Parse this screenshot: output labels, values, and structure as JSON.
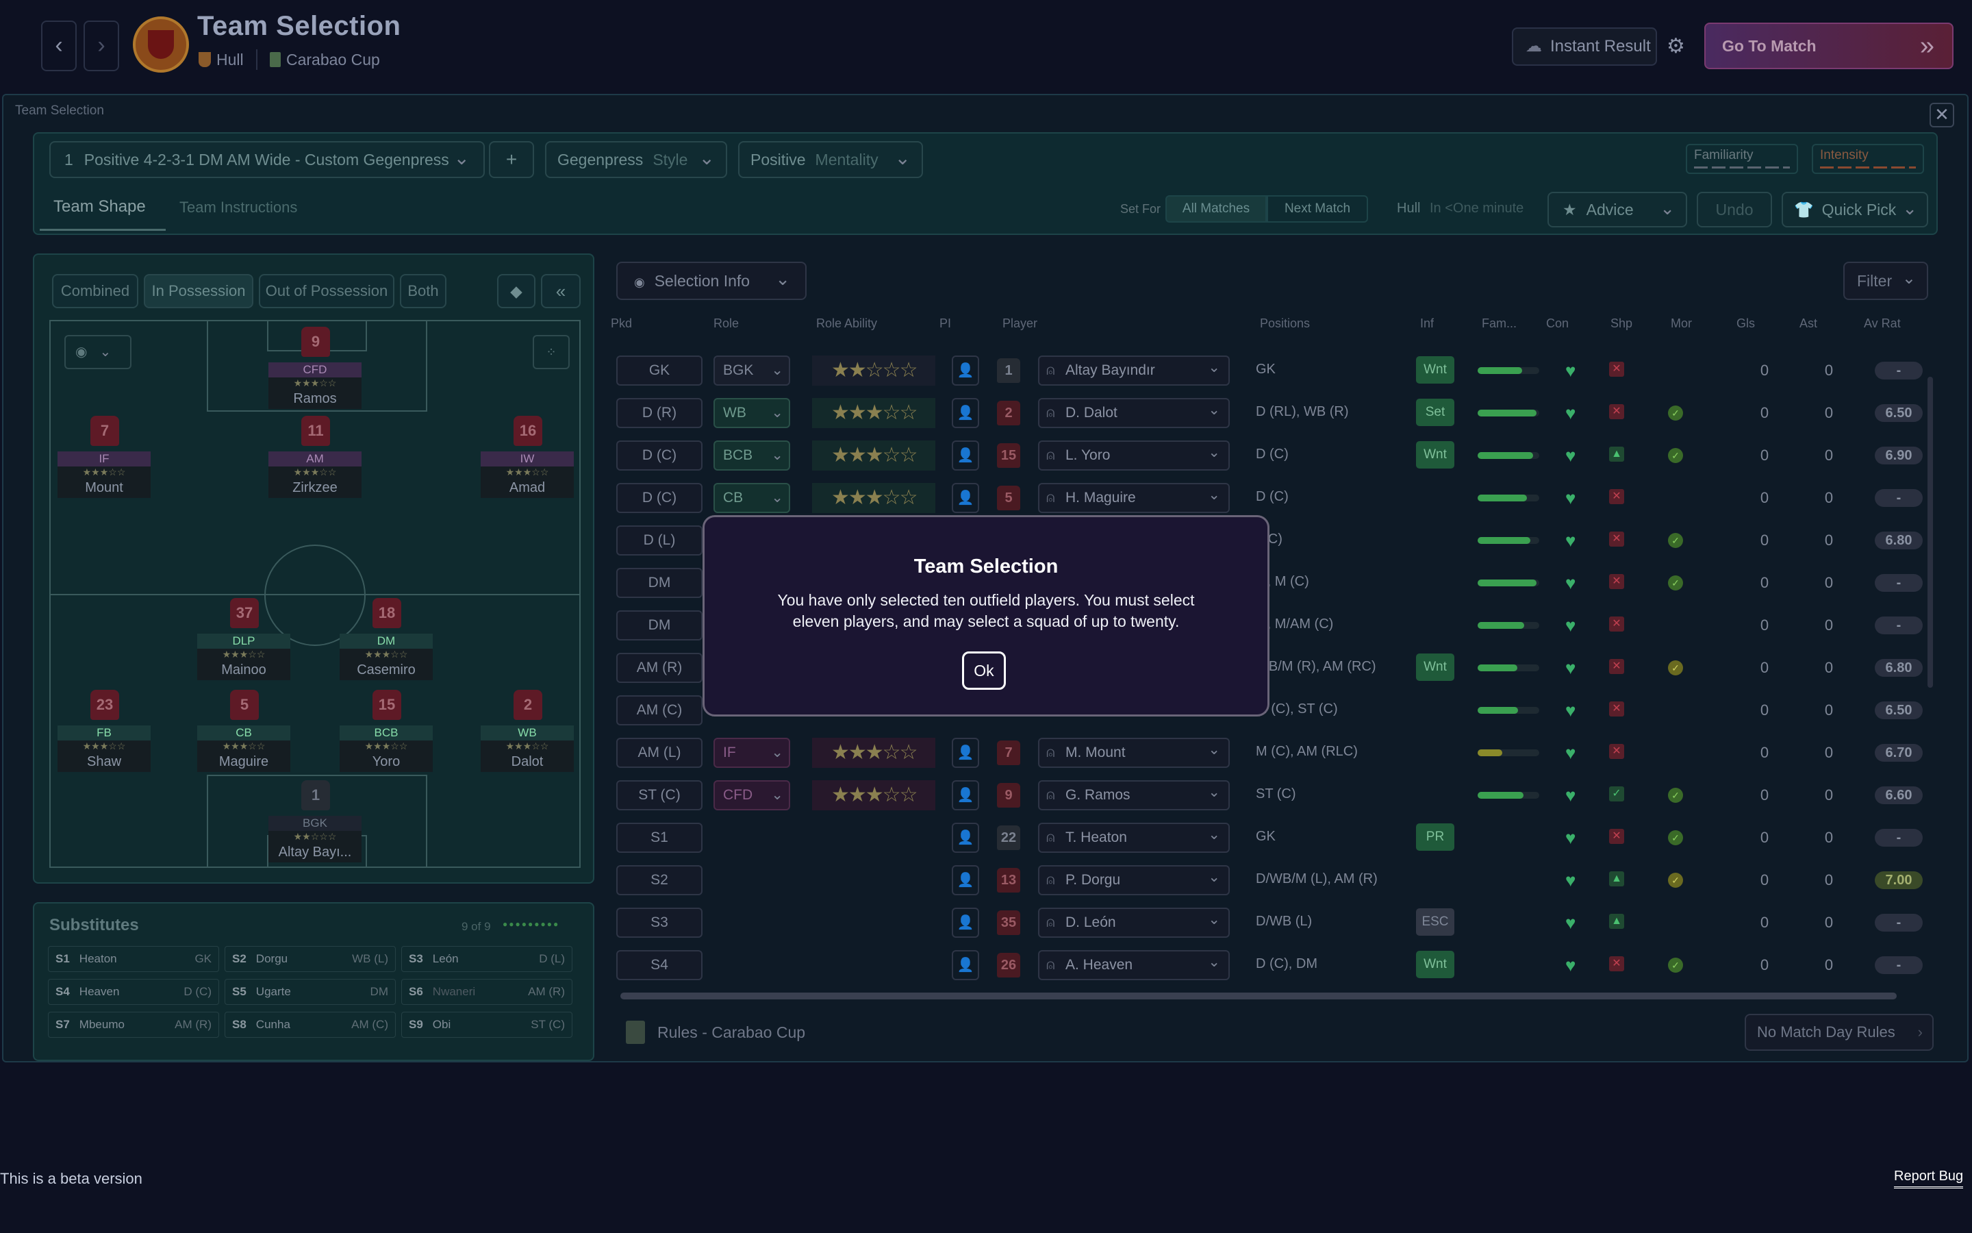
{
  "header": {
    "title": "Team Selection",
    "opponent": "Hull",
    "competition": "Carabao Cup",
    "instant_result": "Instant Result",
    "go_to_match": "Go To Match"
  },
  "panel": {
    "title": "Team Selection",
    "tactic_number": "1",
    "tactic_name": "Positive 4-2-3-1 DM AM Wide - Custom Gegenpress",
    "add": "+",
    "style_value": "Gegenpress",
    "style_label": "Style",
    "mentality_value": "Positive",
    "mentality_label": "Mentality",
    "familiarity": "Familiarity",
    "intensity": "Intensity",
    "tabs": [
      "Team Shape",
      "Team Instructions"
    ],
    "set_for": "Set For",
    "set_for_options": [
      "All Matches",
      "Next Match"
    ],
    "next_opp": "Hull",
    "next_time": "In <One minute",
    "advice": "Advice",
    "undo": "Undo",
    "quick_pick": "Quick Pick"
  },
  "pitch": {
    "views": [
      "Combined",
      "In Possession",
      "Out of Possession",
      "Both"
    ],
    "players": [
      {
        "num": "9",
        "role": "CFD",
        "stars": "★★★☆☆",
        "name": "Ramos"
      },
      {
        "num": "7",
        "role": "IF",
        "stars": "★★★☆☆",
        "name": "Mount"
      },
      {
        "num": "11",
        "role": "AM",
        "stars": "★★★☆☆",
        "name": "Zirkzee"
      },
      {
        "num": "16",
        "role": "IW",
        "stars": "★★★☆☆",
        "name": "Amad"
      },
      {
        "num": "37",
        "role": "DLP",
        "stars": "★★★☆☆",
        "name": "Mainoo"
      },
      {
        "num": "18",
        "role": "DM",
        "stars": "★★★☆☆",
        "name": "Casemiro"
      },
      {
        "num": "23",
        "role": "FB",
        "stars": "★★★☆☆",
        "name": "Shaw"
      },
      {
        "num": "5",
        "role": "CB",
        "stars": "★★★☆☆",
        "name": "Maguire"
      },
      {
        "num": "15",
        "role": "BCB",
        "stars": "★★★☆☆",
        "name": "Yoro"
      },
      {
        "num": "2",
        "role": "WB",
        "stars": "★★★☆☆",
        "name": "Dalot"
      },
      {
        "num": "1",
        "role": "BGK",
        "stars": "★★☆☆☆",
        "name": "Altay Bayı..."
      }
    ]
  },
  "substitutes": {
    "title": "Substitutes",
    "count": "9 of 9",
    "dots": "●●●●●●●●●",
    "list": [
      {
        "slot": "S1",
        "name": "Heaton",
        "pos": "GK"
      },
      {
        "slot": "S2",
        "name": "Dorgu",
        "pos": "WB (L)"
      },
      {
        "slot": "S3",
        "name": "León",
        "pos": "D (L)"
      },
      {
        "slot": "S4",
        "name": "Heaven",
        "pos": "D (C)"
      },
      {
        "slot": "S5",
        "name": "Ugarte",
        "pos": "DM"
      },
      {
        "slot": "S6",
        "name": "Nwaneri",
        "pos": "AM (R)"
      },
      {
        "slot": "S7",
        "name": "Mbeumo",
        "pos": "AM (R)"
      },
      {
        "slot": "S8",
        "name": "Cunha",
        "pos": "AM (C)"
      },
      {
        "slot": "S9",
        "name": "Obi",
        "pos": "ST (C)"
      }
    ]
  },
  "table": {
    "selection_info": "Selection Info",
    "filter": "Filter",
    "headers": [
      "Pkd",
      "Role",
      "Role Ability",
      "PI",
      "Player",
      "Positions",
      "Inf",
      "Fam...",
      "Con",
      "Shp",
      "Mor",
      "Gls",
      "Ast",
      "Av Rat"
    ],
    "rows": [
      {
        "pkd": "GK",
        "role": "BGK",
        "stars": "★★☆☆☆",
        "num": "1",
        "player": "Altay Bayındır",
        "pos": "GK",
        "inf": "Wnt",
        "gls": "0",
        "ast": "0",
        "avr": "-"
      },
      {
        "pkd": "D (R)",
        "role": "WB",
        "stars": "★★★☆☆",
        "num": "2",
        "player": "D. Dalot",
        "pos": "D (RL), WB (R)",
        "inf": "Set",
        "gls": "0",
        "ast": "0",
        "avr": "6.50"
      },
      {
        "pkd": "D (C)",
        "role": "BCB",
        "stars": "★★★☆☆",
        "num": "15",
        "player": "L. Yoro",
        "pos": "D (C)",
        "inf": "Wnt",
        "gls": "0",
        "ast": "0",
        "avr": "6.90"
      },
      {
        "pkd": "D (C)",
        "role": "CB",
        "stars": "★★★☆☆",
        "num": "5",
        "player": "H. Maguire",
        "pos": "D (C)",
        "inf": "",
        "gls": "0",
        "ast": "0",
        "avr": "-"
      },
      {
        "pkd": "D (L)",
        "role": "",
        "stars": "",
        "num": "",
        "player": "",
        "pos": "(LC)",
        "inf": "",
        "gls": "0",
        "ast": "0",
        "avr": "6.80"
      },
      {
        "pkd": "DM",
        "role": "",
        "stars": "",
        "num": "",
        "player": "",
        "pos": "M, M (C)",
        "inf": "",
        "gls": "0",
        "ast": "0",
        "avr": "-"
      },
      {
        "pkd": "DM",
        "role": "",
        "stars": "",
        "num": "",
        "player": "",
        "pos": "M, M/AM (C)",
        "inf": "",
        "gls": "0",
        "ast": "0",
        "avr": "-"
      },
      {
        "pkd": "AM (R)",
        "role": "",
        "stars": "",
        "num": "",
        "player": "",
        "pos": "WB/M (R), AM (RC)",
        "inf": "Wnt",
        "gls": "0",
        "ast": "0",
        "avr": "6.80"
      },
      {
        "pkd": "AM (C)",
        "role": "",
        "stars": "",
        "num": "",
        "player": "",
        "pos": "M (C), ST (C)",
        "inf": "",
        "gls": "0",
        "ast": "0",
        "avr": "6.50"
      },
      {
        "pkd": "AM (L)",
        "role": "IF",
        "stars": "★★★☆☆",
        "num": "7",
        "player": "M. Mount",
        "pos": "M (C), AM (RLC)",
        "inf": "",
        "gls": "0",
        "ast": "0",
        "avr": "6.70"
      },
      {
        "pkd": "ST (C)",
        "role": "CFD",
        "stars": "★★★☆☆",
        "num": "9",
        "player": "G. Ramos",
        "pos": "ST (C)",
        "inf": "",
        "gls": "0",
        "ast": "0",
        "avr": "6.60"
      },
      {
        "pkd": "S1",
        "role": "",
        "stars": "",
        "num": "22",
        "player": "T. Heaton",
        "pos": "GK",
        "inf": "PR",
        "gls": "0",
        "ast": "0",
        "avr": "-"
      },
      {
        "pkd": "S2",
        "role": "",
        "stars": "",
        "num": "13",
        "player": "P. Dorgu",
        "pos": "D/WB/M (L), AM (R)",
        "inf": "",
        "gls": "0",
        "ast": "0",
        "avr": "7.00"
      },
      {
        "pkd": "S3",
        "role": "",
        "stars": "",
        "num": "35",
        "player": "D. León",
        "pos": "D/WB (L)",
        "inf": "ESC",
        "gls": "0",
        "ast": "0",
        "avr": "-"
      },
      {
        "pkd": "S4",
        "role": "",
        "stars": "",
        "num": "26",
        "player": "A. Heaven",
        "pos": "D (C), DM",
        "inf": "Wnt",
        "gls": "0",
        "ast": "0",
        "avr": "-"
      }
    ],
    "rules": "Rules - Carabao Cup",
    "no_match_day": "No Match Day Rules"
  },
  "dialog": {
    "title": "Team Selection",
    "message": "You have only selected ten outfield players. You must select eleven players, and may select a squad of up to twenty.",
    "ok": "Ok"
  },
  "footer": {
    "beta": "This is a beta version",
    "report_bug": "Report Bug"
  }
}
